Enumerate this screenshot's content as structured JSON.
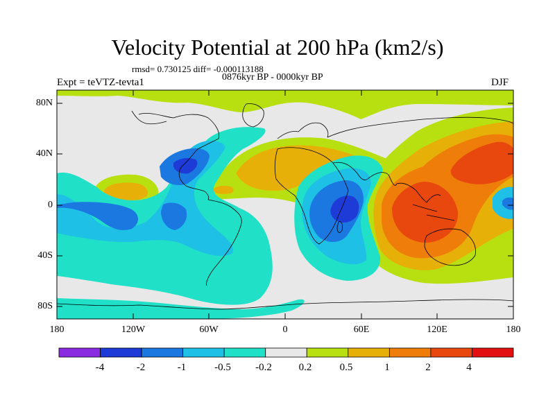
{
  "title": "Velocity Potential at 200 hPa (km2/s)",
  "stats": "rmsd= 0.730125 diff= -0.000113188",
  "period": "0876kyr BP - 0000kyr BP",
  "experiment": "Expt = teVTZ-tevta1",
  "season": "DJF",
  "lat_labels": [
    "80N",
    "40N",
    "0",
    "40S",
    "80S"
  ],
  "lon_labels": [
    "180",
    "120W",
    "60W",
    "0",
    "60E",
    "120E",
    "180"
  ],
  "colorbar": {
    "colors": [
      "#8a2be2",
      "#1e3bd8",
      "#1a78e0",
      "#1ec0e6",
      "#20e0c8",
      "#e8e8e8",
      "#b8e010",
      "#e6b008",
      "#ef7d0a",
      "#e8480e",
      "#e31010"
    ],
    "labels": [
      "-4",
      "-2",
      "-1",
      "-0.5",
      "-0.2",
      "0.2",
      "0.5",
      "1",
      "2",
      "4"
    ]
  },
  "palette": {
    "neg_strong": "#1e3bd8",
    "neg_mid": "#1a78e0",
    "neg_light": "#1ec0e6",
    "neg_weak": "#20e0c8",
    "neutral": "#e8e8e8",
    "pos_weak": "#b8e010",
    "pos_light": "#e6b008",
    "pos_mid": "#ef7d0a",
    "pos_strong": "#e8480e"
  }
}
